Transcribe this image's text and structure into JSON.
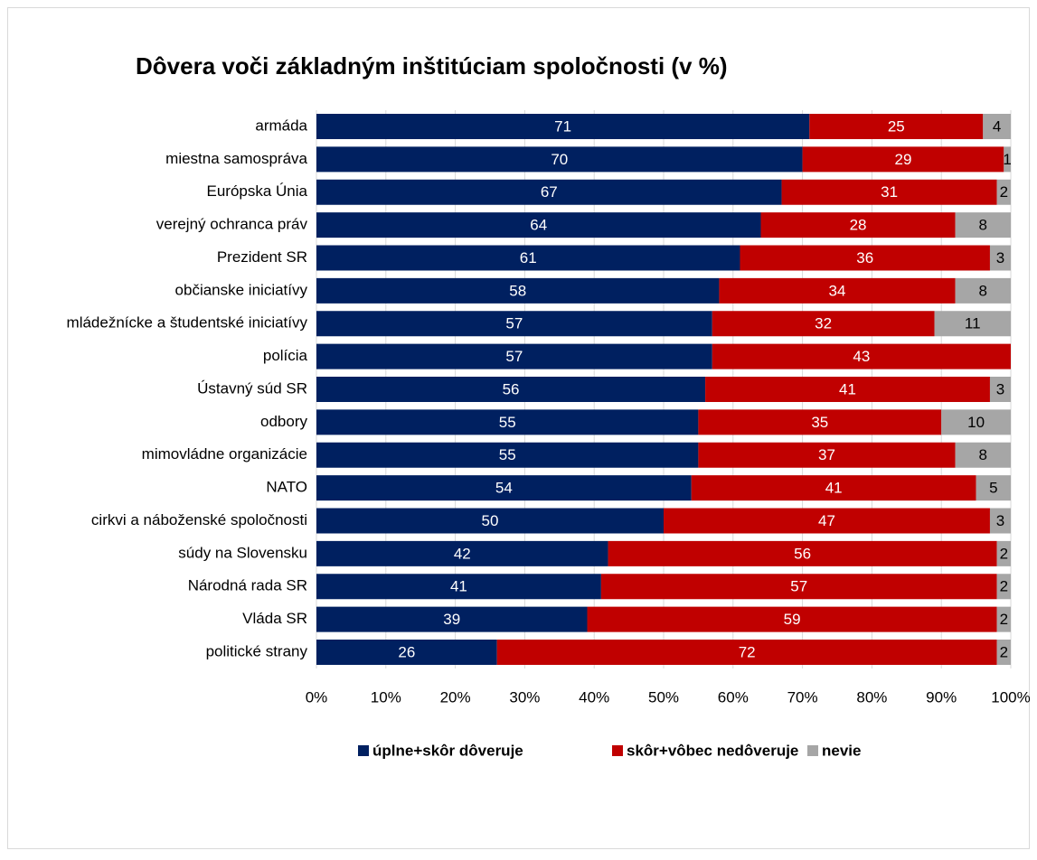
{
  "chart_data": {
    "type": "stacked-bar-horizontal",
    "title": "Dôvera voči základným inštitúciam spoločnosti (v %)",
    "categories": [
      "armáda",
      "miestna samospráva",
      "Európska Únia",
      "verejný ochranca práv",
      "Prezident SR",
      "občianske iniciatívy",
      "mládežnícke a študentské iniciatívy",
      "polícia",
      "Ústavný súd SR",
      "odbory",
      "mimovládne organizácie",
      "NATO",
      "cirkvi a náboženské spoločnosti",
      "súdy na Slovensku",
      "Národná rada SR",
      "Vláda SR",
      "politické strany"
    ],
    "series": [
      {
        "name": "úplne+skôr dôveruje",
        "color": "#002060",
        "values": [
          71,
          70,
          67,
          64,
          61,
          58,
          57,
          57,
          56,
          55,
          55,
          54,
          50,
          42,
          41,
          39,
          26
        ]
      },
      {
        "name": "skôr+vôbec nedôveruje",
        "color": "#C00000",
        "values": [
          25,
          29,
          31,
          28,
          36,
          34,
          32,
          43,
          41,
          35,
          37,
          41,
          47,
          56,
          57,
          59,
          72
        ]
      },
      {
        "name": "nevie",
        "color": "#A6A6A6",
        "values": [
          4,
          1,
          2,
          8,
          3,
          8,
          11,
          null,
          3,
          10,
          8,
          5,
          3,
          2,
          2,
          2,
          2
        ]
      }
    ],
    "xlim": [
      0,
      100
    ],
    "xticks": [
      {
        "value": 0,
        "label": "0%"
      },
      {
        "value": 10,
        "label": "10%"
      },
      {
        "value": 20,
        "label": "20%"
      },
      {
        "value": 30,
        "label": "30%"
      },
      {
        "value": 40,
        "label": "40%"
      },
      {
        "value": 50,
        "label": "50%"
      },
      {
        "value": 60,
        "label": "60%"
      },
      {
        "value": 70,
        "label": "70%"
      },
      {
        "value": 80,
        "label": "80%"
      },
      {
        "value": 90,
        "label": "90%"
      },
      {
        "value": 100,
        "label": "100%"
      }
    ],
    "grid": true,
    "legend": "bottom"
  }
}
